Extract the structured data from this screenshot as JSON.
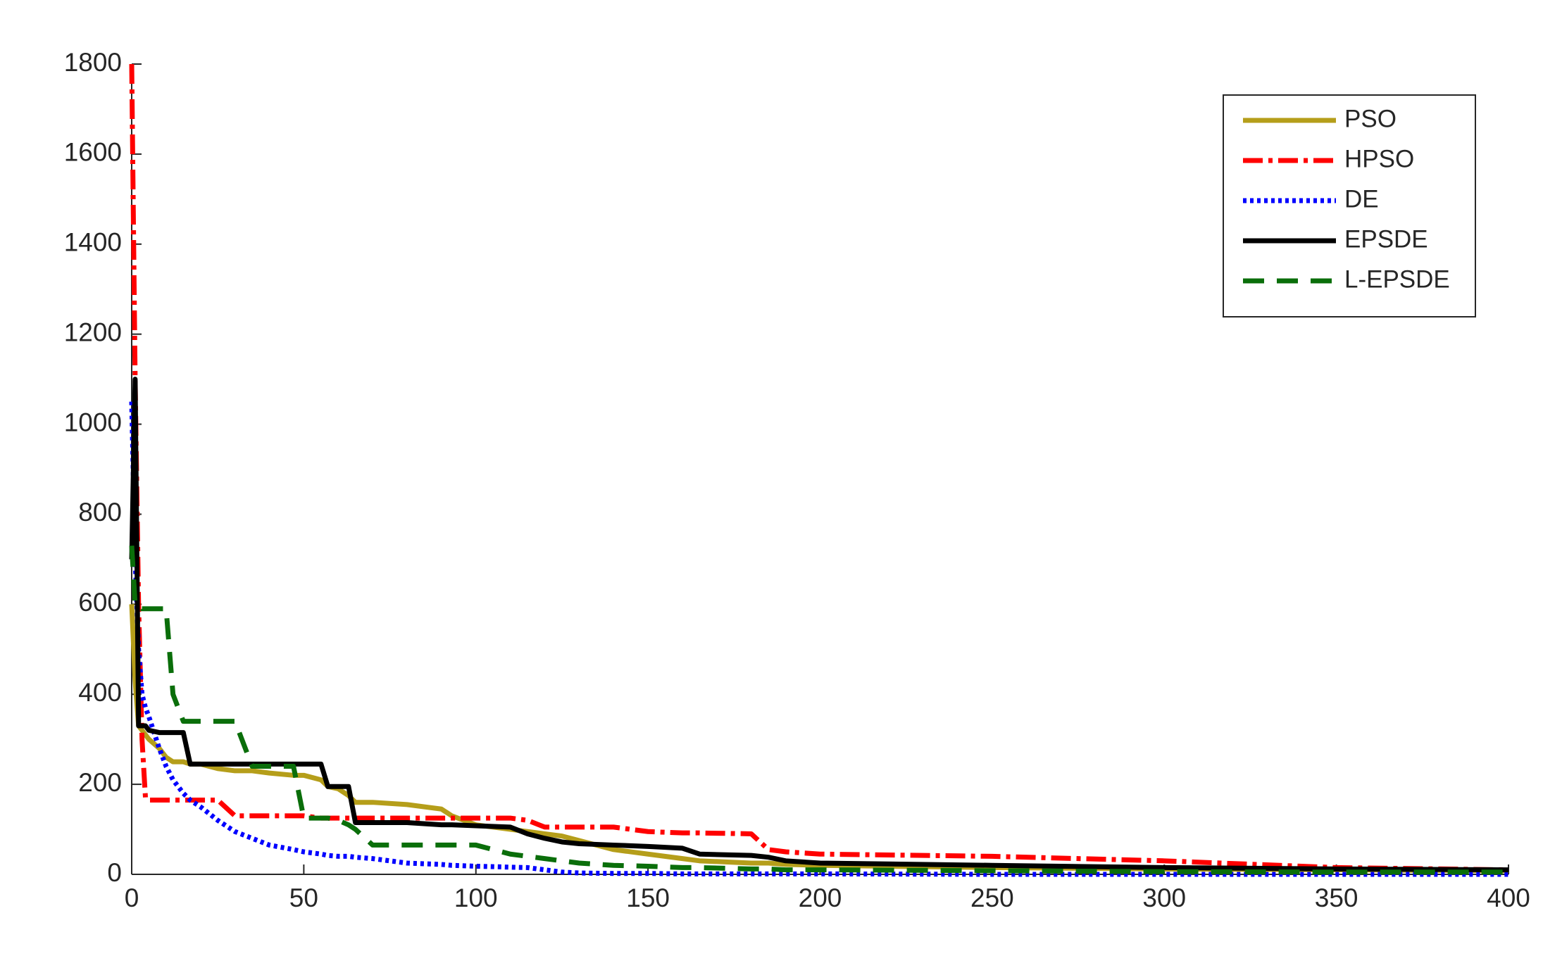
{
  "chart_data": {
    "type": "line",
    "x": [
      0,
      1,
      2,
      3,
      4,
      5,
      8,
      10,
      12,
      15,
      17,
      20,
      25,
      30,
      35,
      40,
      47,
      50,
      55,
      57,
      60,
      63,
      65,
      70,
      80,
      90,
      93,
      100,
      110,
      115,
      120,
      125,
      130,
      140,
      150,
      160,
      165,
      180,
      185,
      190,
      200,
      250,
      300,
      350,
      400
    ],
    "series": [
      {
        "name": "PSO",
        "color": "#b59e1a",
        "line_style": "solid",
        "values": [
          600,
          430,
          330,
          320,
          310,
          300,
          280,
          260,
          250,
          250,
          245,
          245,
          235,
          230,
          230,
          225,
          220,
          220,
          210,
          195,
          190,
          175,
          160,
          160,
          155,
          145,
          130,
          110,
          100,
          95,
          90,
          85,
          75,
          55,
          45,
          35,
          30,
          25,
          25,
          22,
          20,
          15,
          12,
          10,
          8
        ]
      },
      {
        "name": "HPSO",
        "color": "#ff0000",
        "line_style": "dashdot",
        "values": [
          1800,
          1100,
          600,
          300,
          170,
          165,
          165,
          165,
          165,
          165,
          165,
          165,
          165,
          130,
          130,
          130,
          130,
          130,
          125,
          125,
          125,
          125,
          125,
          125,
          125,
          125,
          125,
          125,
          125,
          120,
          105,
          105,
          105,
          105,
          95,
          92,
          92,
          90,
          55,
          50,
          45,
          40,
          30,
          15,
          10
        ]
      },
      {
        "name": "DE",
        "color": "#0000ff",
        "line_style": "dotted",
        "values": [
          1050,
          700,
          500,
          400,
          370,
          350,
          280,
          240,
          210,
          180,
          165,
          150,
          120,
          95,
          80,
          65,
          55,
          50,
          45,
          42,
          40,
          40,
          38,
          35,
          25,
          22,
          20,
          18,
          16,
          15,
          10,
          5,
          3,
          2,
          2,
          1,
          1,
          1,
          1,
          1,
          1,
          0,
          0,
          0,
          0
        ]
      },
      {
        "name": "EPSDE",
        "color": "#000000",
        "line_style": "solid",
        "values": [
          700,
          1100,
          330,
          330,
          330,
          320,
          315,
          315,
          315,
          315,
          245,
          245,
          245,
          245,
          245,
          245,
          245,
          245,
          245,
          195,
          195,
          195,
          115,
          115,
          115,
          110,
          110,
          108,
          105,
          90,
          80,
          72,
          68,
          65,
          62,
          58,
          45,
          42,
          38,
          30,
          25,
          20,
          15,
          12,
          10
        ]
      },
      {
        "name": "L-EPSDE",
        "color": "#0a6e0a",
        "line_style": "dashed",
        "values": [
          730,
          600,
          600,
          590,
          590,
          590,
          590,
          590,
          400,
          340,
          340,
          340,
          340,
          340,
          240,
          240,
          240,
          125,
          125,
          125,
          120,
          110,
          100,
          65,
          65,
          65,
          65,
          65,
          45,
          40,
          35,
          30,
          25,
          20,
          18,
          15,
          15,
          12,
          12,
          10,
          10,
          8,
          6,
          5,
          5
        ]
      }
    ],
    "xlim": [
      0,
      400
    ],
    "xticks": [
      0,
      50,
      100,
      150,
      200,
      250,
      300,
      350,
      400
    ],
    "ylim": [
      0,
      1800
    ],
    "yticks": [
      0,
      200,
      400,
      600,
      800,
      1000,
      1200,
      1400,
      1600,
      1800
    ],
    "legend": "upper right"
  }
}
